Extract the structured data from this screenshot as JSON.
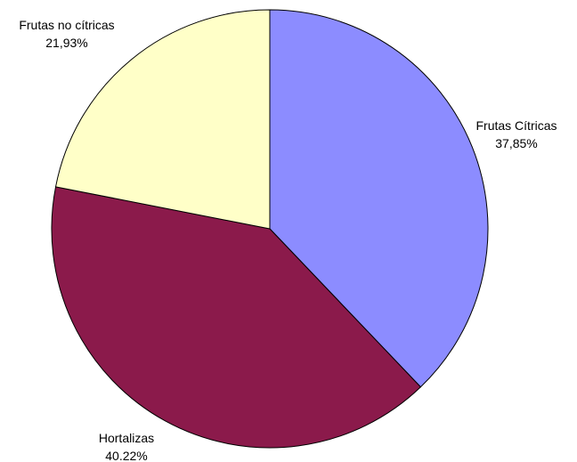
{
  "chart_data": {
    "type": "pie",
    "title": "",
    "start_angle_deg": 90,
    "direction": "clockwise",
    "slices": [
      {
        "label": "Frutas Cítricas",
        "value": 37.85,
        "value_text": "37,85%",
        "color": "#8C8CFF",
        "label_side": "right"
      },
      {
        "label": "Hortalizas",
        "value": 40.22,
        "value_text": "40.22%",
        "color": "#8B1A4B",
        "label_side": "left"
      },
      {
        "label": "Frutas no cítricas",
        "value": 21.93,
        "value_text": "21,93%",
        "color": "#FFFFC8",
        "label_side": "left"
      }
    ]
  }
}
